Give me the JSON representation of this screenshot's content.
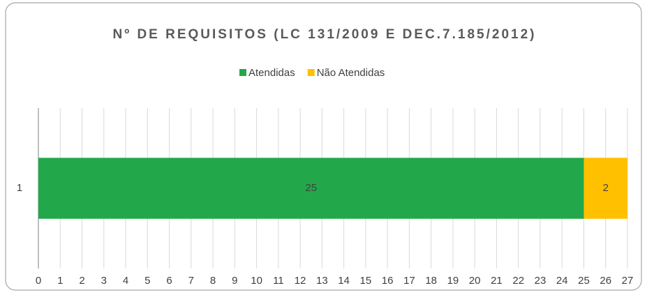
{
  "chart_data": {
    "type": "bar",
    "orientation": "horizontal",
    "stacked": true,
    "title": "Nº DE REQUISITOS (LC 131/2009 E DEC.7.185/2012)",
    "categories": [
      "1"
    ],
    "series": [
      {
        "name": "Atendidas",
        "color": "#22a84a",
        "values": [
          25
        ]
      },
      {
        "name": "Não Atendidas",
        "color": "#ffc000",
        "values": [
          2
        ]
      }
    ],
    "xlim": [
      0,
      27
    ],
    "xticks": [
      0,
      1,
      2,
      3,
      4,
      5,
      6,
      7,
      8,
      9,
      10,
      11,
      12,
      13,
      14,
      15,
      16,
      17,
      18,
      19,
      20,
      21,
      22,
      23,
      24,
      25,
      26,
      27
    ],
    "grid": true,
    "legend": "top",
    "data_labels": true
  }
}
